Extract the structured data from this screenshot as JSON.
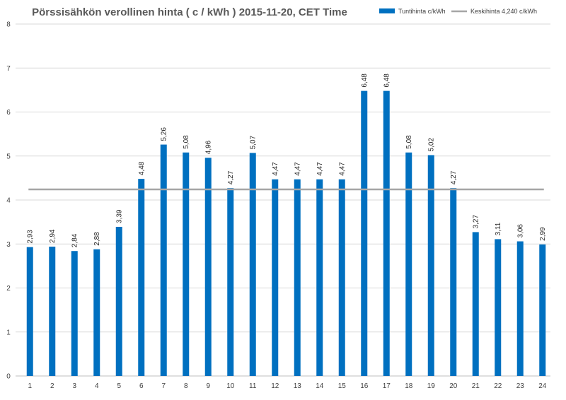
{
  "chart_data": {
    "type": "bar",
    "title": "Pörssisähkön verollinen hinta ( c / kWh ) 2015-11-20, CET Time",
    "xlabel": "",
    "ylabel": "",
    "categories": [
      "1",
      "2",
      "3",
      "4",
      "5",
      "6",
      "7",
      "8",
      "9",
      "10",
      "11",
      "12",
      "13",
      "14",
      "15",
      "16",
      "17",
      "18",
      "19",
      "20",
      "21",
      "22",
      "23",
      "24"
    ],
    "series": [
      {
        "name": "Tuntihinta c/kWh",
        "type": "bar",
        "color": "#0070C0",
        "values": [
          2.93,
          2.94,
          2.84,
          2.88,
          3.39,
          4.48,
          5.26,
          5.08,
          4.96,
          4.27,
          5.07,
          4.47,
          4.47,
          4.47,
          4.47,
          6.48,
          6.48,
          5.08,
          5.02,
          4.27,
          3.27,
          3.11,
          3.06,
          2.99
        ],
        "labels": [
          "2,93",
          "2,94",
          "2,84",
          "2,88",
          "3,39",
          "4,48",
          "5,26",
          "5,08",
          "4,96",
          "4,27",
          "5,07",
          "4,47",
          "4,47",
          "4,47",
          "4,47",
          "6,48",
          "6,48",
          "5,08",
          "5,02",
          "4,27",
          "3,27",
          "3,11",
          "3,06",
          "2,99"
        ]
      },
      {
        "name": "Keskihinta 4,240 c/kWh",
        "type": "line",
        "color": "#A6A6A6",
        "value": 4.24
      }
    ],
    "ylim": [
      0,
      8
    ],
    "yticks": [
      "0",
      "1",
      "2",
      "3",
      "4",
      "5",
      "6",
      "7",
      "8"
    ],
    "grid": true,
    "legend": "top-right",
    "colors": {
      "gridline": "#D9D9D9",
      "axis": "#BFBFBF"
    }
  }
}
